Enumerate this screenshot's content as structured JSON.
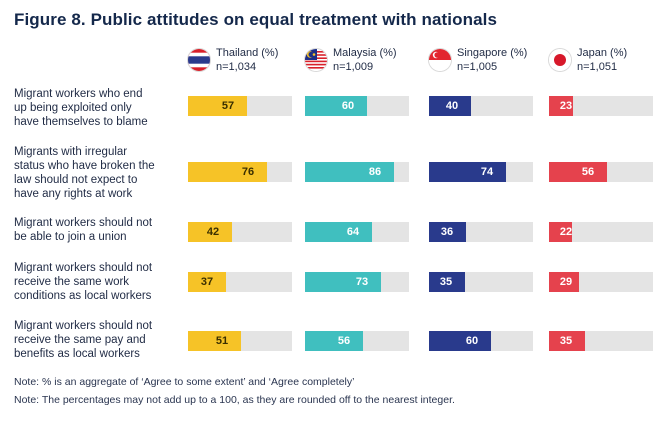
{
  "title": "Figure 8. Public attitudes on equal treatment with nationals",
  "colors": {
    "thailand": "#f6c327",
    "malaysia": "#40bfbf",
    "singapore": "#293a8c",
    "japan": "#e5424d",
    "track": "#e4e4e4"
  },
  "countries": [
    {
      "name": "Thailand (%)",
      "sample": "n=1,034",
      "flag": "thailand-flag-icon"
    },
    {
      "name": "Malaysia (%)",
      "sample": "n=1,009",
      "flag": "malaysia-flag-icon"
    },
    {
      "name": "Singapore (%)",
      "sample": "n=1,005",
      "flag": "singapore-flag-icon"
    },
    {
      "name": "Japan (%)",
      "sample": "n=1,051",
      "flag": "japan-flag-icon"
    }
  ],
  "chart_data": {
    "type": "bar",
    "title": "Figure 8. Public attitudes on equal treatment with nationals",
    "orientation": "horizontal",
    "xlim": [
      0,
      100
    ],
    "categories": [
      "Migrant workers who end up being exploited only have themselves to blame",
      "Migrants with irregular status who have broken the law should not expect to have any rights at work",
      "Migrant workers should not be able to join a union",
      "Migrant workers should not receive the same work conditions as local workers",
      "Migrant workers should not receive the same pay and benefits as local workers"
    ],
    "series": [
      {
        "name": "Thailand (%)",
        "values": [
          57,
          76,
          42,
          37,
          51
        ]
      },
      {
        "name": "Malaysia (%)",
        "values": [
          60,
          86,
          64,
          73,
          56
        ]
      },
      {
        "name": "Singapore (%)",
        "values": [
          40,
          74,
          36,
          35,
          60
        ]
      },
      {
        "name": "Japan (%)",
        "values": [
          23,
          56,
          22,
          29,
          35
        ]
      }
    ]
  },
  "row_labels": [
    [
      "Migrant workers who end",
      "up being exploited only",
      "have themselves to blame"
    ],
    [
      "Migrants with irregular",
      "status who have broken the",
      "law should not expect to",
      "have any rights at work"
    ],
    [
      "Migrant workers should not",
      "be able to join a union"
    ],
    [
      "Migrant workers should not",
      "receive the same work",
      "conditions as local workers"
    ],
    [
      "Migrant workers should not",
      "receive the same pay and",
      "benefits as local workers"
    ]
  ],
  "notes": [
    "Note: % is an aggregate of ‘Agree to some extent’ and ‘Agree completely’",
    "Note: The percentages may not add up to a 100, as they are rounded off to the nearest integer."
  ]
}
